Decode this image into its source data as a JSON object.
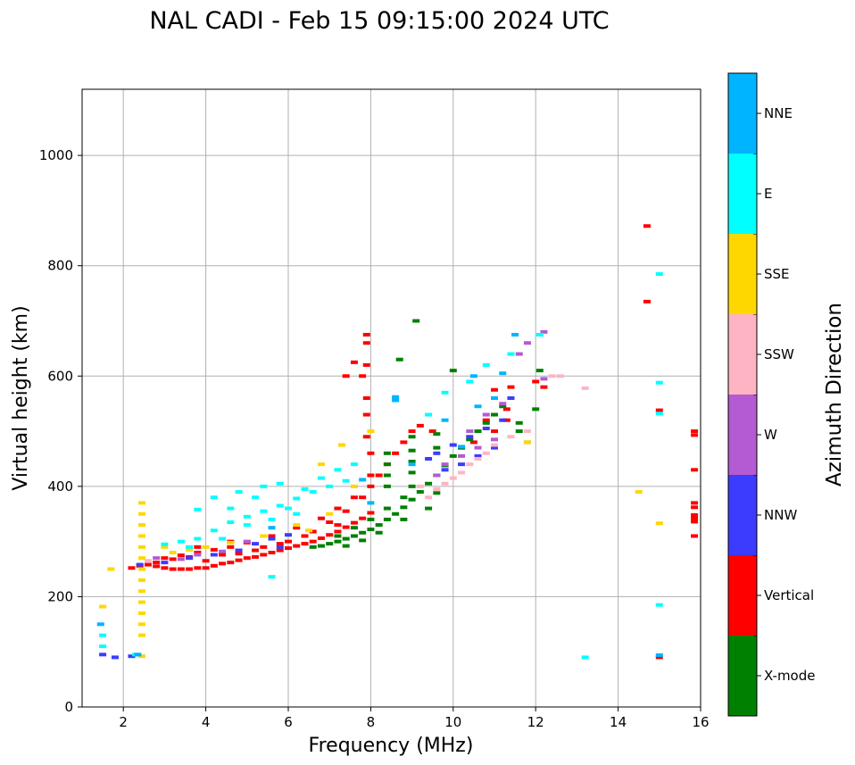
{
  "chart_data": {
    "type": "scatter",
    "title": "NAL CADI - Feb 15 09:15:00 2024 UTC",
    "xlabel": "Frequency (MHz)",
    "ylabel": "Virtual height (km)",
    "xlim": [
      1,
      16
    ],
    "ylim": [
      0,
      1120
    ],
    "xticks": [
      2,
      4,
      6,
      8,
      10,
      12,
      14,
      16
    ],
    "yticks": [
      0,
      200,
      400,
      600,
      800,
      1000
    ],
    "grid": true,
    "colorbar": {
      "title": "Azimuth Direction",
      "categories": [
        {
          "name": "X-mode",
          "color": "#008000"
        },
        {
          "name": "Vertical",
          "color": "#ff0000"
        },
        {
          "name": "NNW",
          "color": "#3c3cff"
        },
        {
          "name": "W",
          "color": "#b45ad2"
        },
        {
          "name": "SSW",
          "color": "#ffb4c3"
        },
        {
          "name": "SSE",
          "color": "#ffd700"
        },
        {
          "name": "E",
          "color": "#00ffff"
        },
        {
          "name": "NNE",
          "color": "#00b4ff"
        }
      ]
    },
    "series": [
      {
        "name": "Vertical",
        "color": "#ff0000",
        "points": [
          [
            2.2,
            252
          ],
          [
            2.4,
            256
          ],
          [
            2.6,
            258
          ],
          [
            2.8,
            255
          ],
          [
            3.0,
            252
          ],
          [
            3.2,
            250
          ],
          [
            3.4,
            250
          ],
          [
            3.6,
            250
          ],
          [
            3.8,
            252
          ],
          [
            4.0,
            252
          ],
          [
            4.2,
            256
          ],
          [
            4.4,
            260
          ],
          [
            4.6,
            262
          ],
          [
            4.8,
            266
          ],
          [
            5.0,
            270
          ],
          [
            5.2,
            272
          ],
          [
            5.4,
            276
          ],
          [
            5.6,
            280
          ],
          [
            5.8,
            284
          ],
          [
            6.0,
            288
          ],
          [
            6.2,
            292
          ],
          [
            6.4,
            296
          ],
          [
            6.6,
            300
          ],
          [
            6.8,
            306
          ],
          [
            7.0,
            312
          ],
          [
            7.2,
            318
          ],
          [
            7.4,
            326
          ],
          [
            7.6,
            334
          ],
          [
            7.8,
            342
          ],
          [
            8.0,
            352
          ],
          [
            3.0,
            270
          ],
          [
            3.4,
            275
          ],
          [
            3.8,
            280
          ],
          [
            4.2,
            285
          ],
          [
            4.6,
            290
          ],
          [
            5.0,
            298
          ],
          [
            5.6,
            310
          ],
          [
            6.2,
            325
          ],
          [
            6.8,
            342
          ],
          [
            7.2,
            360
          ],
          [
            7.6,
            380
          ],
          [
            8.0,
            400
          ],
          [
            8.2,
            420
          ],
          [
            8.4,
            440
          ],
          [
            8.6,
            460
          ],
          [
            8.8,
            480
          ],
          [
            9.0,
            500
          ],
          [
            4.0,
            265
          ],
          [
            4.8,
            278
          ],
          [
            5.4,
            290
          ],
          [
            6.0,
            300
          ],
          [
            6.6,
            318
          ],
          [
            7.0,
            335
          ],
          [
            7.4,
            355
          ],
          [
            7.8,
            380
          ],
          [
            8.0,
            420
          ],
          [
            8.0,
            460
          ],
          [
            7.9,
            490
          ],
          [
            7.9,
            530
          ],
          [
            7.9,
            560
          ],
          [
            7.8,
            600
          ],
          [
            7.9,
            620
          ],
          [
            7.9,
            660
          ],
          [
            7.9,
            675
          ],
          [
            11.3,
            520
          ],
          [
            11.3,
            540
          ],
          [
            11.4,
            560
          ],
          [
            11.4,
            580
          ],
          [
            10.8,
            520
          ],
          [
            11.0,
            500
          ],
          [
            10.5,
            480
          ],
          [
            10.2,
            470
          ],
          [
            12.0,
            590
          ],
          [
            12.2,
            580
          ],
          [
            11.0,
            575
          ],
          [
            9.2,
            510
          ],
          [
            9.5,
            500
          ],
          [
            14.7,
            872
          ],
          [
            14.7,
            735
          ],
          [
            15.0,
            538
          ],
          [
            15.0,
            90
          ],
          [
            15.85,
            500
          ],
          [
            15.85,
            493
          ],
          [
            15.85,
            430
          ],
          [
            15.85,
            370
          ],
          [
            15.85,
            362
          ],
          [
            15.85,
            348
          ],
          [
            15.85,
            342
          ],
          [
            15.85,
            336
          ],
          [
            15.85,
            310
          ],
          [
            2.8,
            262
          ],
          [
            3.2,
            268
          ],
          [
            3.6,
            272
          ],
          [
            4.4,
            276
          ],
          [
            5.2,
            284
          ],
          [
            5.8,
            296
          ],
          [
            6.4,
            310
          ],
          [
            7.2,
            330
          ],
          [
            7.4,
            600
          ],
          [
            7.6,
            625
          ],
          [
            3.8,
            290
          ],
          [
            4.6,
            300
          ]
        ]
      },
      {
        "name": "X-mode",
        "color": "#008000",
        "points": [
          [
            6.6,
            290
          ],
          [
            6.8,
            292
          ],
          [
            7.0,
            296
          ],
          [
            7.2,
            300
          ],
          [
            7.4,
            305
          ],
          [
            7.6,
            310
          ],
          [
            7.8,
            316
          ],
          [
            8.0,
            322
          ],
          [
            8.2,
            330
          ],
          [
            8.4,
            340
          ],
          [
            8.6,
            350
          ],
          [
            8.8,
            362
          ],
          [
            9.0,
            376
          ],
          [
            9.2,
            390
          ],
          [
            9.4,
            405
          ],
          [
            9.6,
            420
          ],
          [
            9.8,
            438
          ],
          [
            10.0,
            455
          ],
          [
            10.2,
            470
          ],
          [
            10.4,
            485
          ],
          [
            10.6,
            500
          ],
          [
            10.8,
            515
          ],
          [
            11.0,
            530
          ],
          [
            11.2,
            545
          ],
          [
            11.4,
            560
          ],
          [
            7.2,
            310
          ],
          [
            7.6,
            325
          ],
          [
            8.0,
            340
          ],
          [
            8.4,
            360
          ],
          [
            8.8,
            380
          ],
          [
            9.0,
            400
          ],
          [
            9.0,
            425
          ],
          [
            9.0,
            445
          ],
          [
            9.0,
            465
          ],
          [
            9.0,
            490
          ],
          [
            8.4,
            420
          ],
          [
            8.4,
            440
          ],
          [
            8.4,
            460
          ],
          [
            8.4,
            400
          ],
          [
            8.7,
            630
          ],
          [
            9.1,
            700
          ],
          [
            9.6,
            470
          ],
          [
            9.6,
            495
          ],
          [
            10.0,
            610
          ],
          [
            11.6,
            515
          ],
          [
            11.6,
            500
          ],
          [
            12.0,
            540
          ],
          [
            12.1,
            610
          ],
          [
            11.8,
            480
          ],
          [
            9.4,
            360
          ],
          [
            8.8,
            340
          ],
          [
            8.2,
            316
          ],
          [
            7.8,
            302
          ],
          [
            7.4,
            292
          ],
          [
            9.6,
            388
          ]
        ]
      },
      {
        "name": "NNW",
        "color": "#3c3cff",
        "points": [
          [
            2.4,
            258
          ],
          [
            3.0,
            262
          ],
          [
            3.6,
            270
          ],
          [
            4.2,
            276
          ],
          [
            4.8,
            284
          ],
          [
            5.2,
            296
          ],
          [
            5.6,
            305
          ],
          [
            6.0,
            312
          ],
          [
            9.6,
            460
          ],
          [
            10.0,
            475
          ],
          [
            10.4,
            490
          ],
          [
            10.8,
            505
          ],
          [
            11.2,
            520
          ],
          [
            10.2,
            440
          ],
          [
            10.6,
            455
          ],
          [
            11.0,
            470
          ],
          [
            9.4,
            450
          ],
          [
            9.8,
            430
          ],
          [
            11.4,
            560
          ],
          [
            1.5,
            95
          ],
          [
            1.8,
            90
          ],
          [
            2.2,
            92
          ],
          [
            5.8,
            290
          ]
        ]
      },
      {
        "name": "W",
        "color": "#b45ad2",
        "points": [
          [
            2.8,
            270
          ],
          [
            3.4,
            268
          ],
          [
            3.8,
            276
          ],
          [
            4.4,
            282
          ],
          [
            9.8,
            440
          ],
          [
            10.2,
            455
          ],
          [
            10.6,
            470
          ],
          [
            11.0,
            485
          ],
          [
            10.4,
            500
          ],
          [
            10.8,
            530
          ],
          [
            11.2,
            550
          ],
          [
            9.6,
            420
          ],
          [
            5.0,
            300
          ],
          [
            11.6,
            640
          ],
          [
            11.8,
            660
          ],
          [
            12.2,
            680
          ],
          [
            12.2,
            595
          ]
        ]
      },
      {
        "name": "SSW",
        "color": "#ffb4c3",
        "points": [
          [
            9.4,
            380
          ],
          [
            9.6,
            395
          ],
          [
            9.8,
            405
          ],
          [
            10.0,
            415
          ],
          [
            10.2,
            425
          ],
          [
            10.4,
            440
          ],
          [
            10.6,
            450
          ],
          [
            10.8,
            460
          ],
          [
            11.0,
            475
          ],
          [
            11.4,
            490
          ],
          [
            12.6,
            600
          ],
          [
            13.2,
            578
          ],
          [
            9.2,
            400
          ],
          [
            11.8,
            500
          ],
          [
            2.6,
            265
          ],
          [
            12.4,
            600
          ]
        ]
      },
      {
        "name": "SSE",
        "color": "#ffd700",
        "points": [
          [
            2.45,
            130
          ],
          [
            2.45,
            150
          ],
          [
            2.45,
            170
          ],
          [
            2.45,
            190
          ],
          [
            2.45,
            210
          ],
          [
            2.45,
            230
          ],
          [
            2.45,
            250
          ],
          [
            2.45,
            270
          ],
          [
            2.45,
            290
          ],
          [
            2.45,
            310
          ],
          [
            2.45,
            330
          ],
          [
            2.45,
            350
          ],
          [
            2.45,
            370
          ],
          [
            2.45,
            92
          ],
          [
            3.2,
            280
          ],
          [
            3.6,
            285
          ],
          [
            4.0,
            290
          ],
          [
            5.4,
            310
          ],
          [
            6.2,
            330
          ],
          [
            7.0,
            350
          ],
          [
            7.6,
            400
          ],
          [
            11.8,
            480
          ],
          [
            14.5,
            390
          ],
          [
            15.0,
            333
          ],
          [
            1.5,
            182
          ],
          [
            1.7,
            250
          ],
          [
            6.8,
            440
          ],
          [
            7.3,
            475
          ],
          [
            3.0,
            290
          ],
          [
            4.6,
            298
          ],
          [
            8.0,
            500
          ],
          [
            6.5,
            320
          ]
        ]
      },
      {
        "name": "E",
        "color": "#00ffff",
        "points": [
          [
            3.0,
            295
          ],
          [
            3.4,
            300
          ],
          [
            3.8,
            305
          ],
          [
            4.2,
            320
          ],
          [
            4.6,
            335
          ],
          [
            5.0,
            345
          ],
          [
            5.4,
            355
          ],
          [
            5.8,
            365
          ],
          [
            6.2,
            378
          ],
          [
            6.6,
            390
          ],
          [
            7.0,
            400
          ],
          [
            7.4,
            410
          ],
          [
            7.6,
            440
          ],
          [
            4.2,
            380
          ],
          [
            4.8,
            390
          ],
          [
            5.4,
            400
          ],
          [
            5.8,
            405
          ],
          [
            6.4,
            395
          ],
          [
            6.8,
            415
          ],
          [
            5.0,
            330
          ],
          [
            5.6,
            340
          ],
          [
            6.0,
            360
          ],
          [
            4.4,
            305
          ],
          [
            3.6,
            290
          ],
          [
            9.8,
            570
          ],
          [
            10.4,
            590
          ],
          [
            10.8,
            620
          ],
          [
            11.4,
            640
          ],
          [
            12.1,
            675
          ],
          [
            13.2,
            90
          ],
          [
            15.0,
            785
          ],
          [
            15.0,
            588
          ],
          [
            15.0,
            532
          ],
          [
            15.0,
            185
          ],
          [
            1.5,
            130
          ],
          [
            1.5,
            110
          ],
          [
            2.3,
            95
          ],
          [
            5.2,
            380
          ],
          [
            4.6,
            360
          ],
          [
            6.2,
            350
          ],
          [
            3.8,
            358
          ],
          [
            7.2,
            430
          ],
          [
            5.6,
            236
          ],
          [
            9.4,
            530
          ]
        ]
      },
      {
        "name": "NNE",
        "color": "#00b4ff",
        "points": [
          [
            8.6,
            562
          ],
          [
            8.6,
            556
          ],
          [
            10.5,
            600
          ],
          [
            11.2,
            605
          ],
          [
            9.0,
            440
          ],
          [
            9.8,
            520
          ],
          [
            10.6,
            545
          ],
          [
            11.0,
            560
          ],
          [
            5.6,
            325
          ],
          [
            7.8,
            412
          ],
          [
            8.0,
            370
          ],
          [
            11.5,
            675
          ],
          [
            1.45,
            150
          ],
          [
            2.35,
            95
          ],
          [
            15.0,
            94
          ],
          [
            10.2,
            472
          ]
        ]
      }
    ]
  }
}
